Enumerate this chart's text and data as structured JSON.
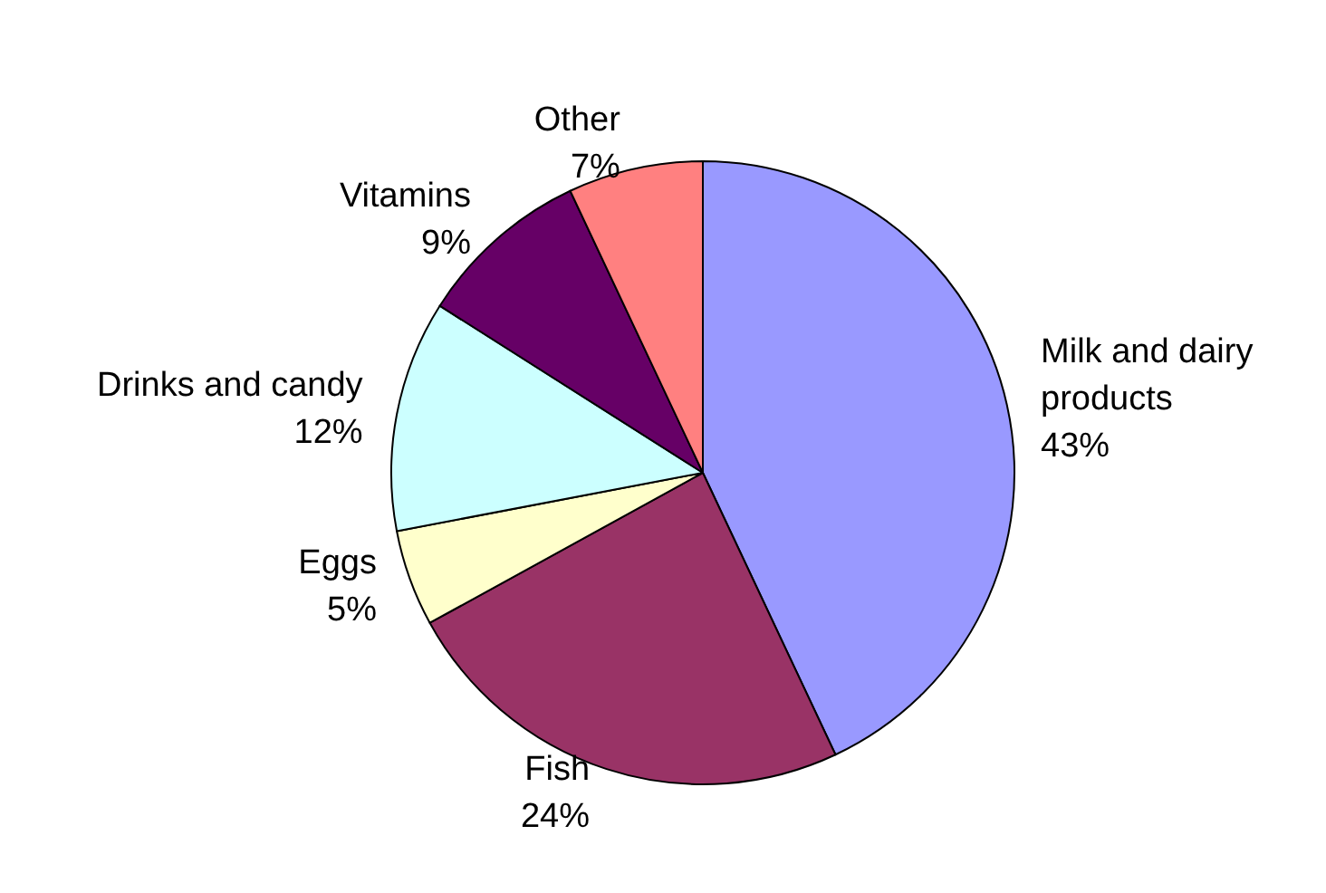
{
  "chart_data": {
    "type": "pie",
    "categories": [
      "Milk and dairy products",
      "Fish",
      "Eggs",
      "Drinks and candy",
      "Vitamins",
      "Other"
    ],
    "values": [
      43,
      24,
      5,
      12,
      9,
      7
    ],
    "value_labels": [
      "43%",
      "24%",
      "5%",
      "12%",
      "9%",
      "7%"
    ],
    "colors": [
      "#9999ff",
      "#993366",
      "#ffffcc",
      "#ccffff",
      "#660066",
      "#ff8080"
    ],
    "legend": false
  }
}
